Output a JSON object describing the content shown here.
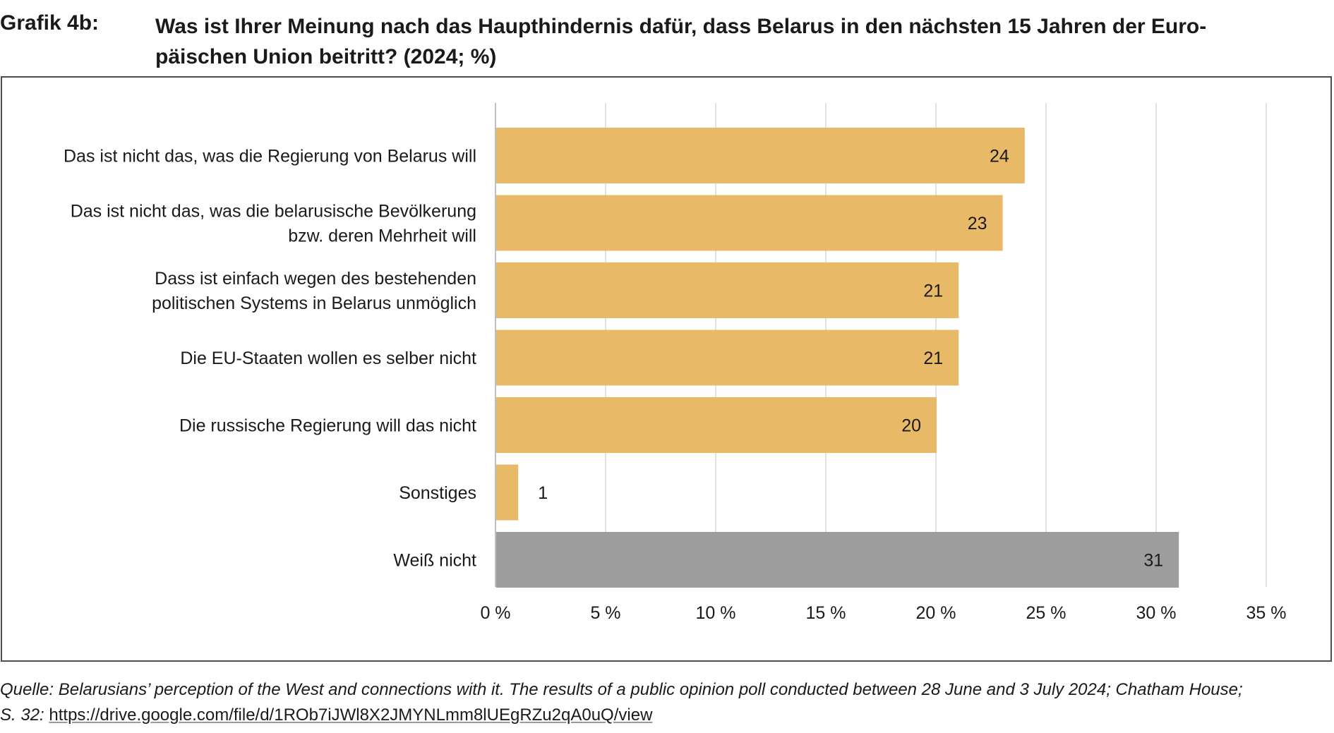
{
  "figure_label": "Grafik 4b:",
  "title_lines": [
    "Was ist Ihrer Meinung nach das Haupthindernis dafür, dass Belarus in den nächsten 15 Jahren der Euro-",
    "päischen Union beitritt? (2024; %)"
  ],
  "source": {
    "line1": "Quelle: Belarusians’ perception of the West and connections with it. The results of a public opinion poll conducted between 28 June and 3 July 2024; Chatham House;",
    "line2_prefix": "S. 32:",
    "link": "https://drive.google.com/file/d/1ROb7iJWl8X2JMYNLmm8lUEgRZu2qA0uQ/view"
  },
  "colors": {
    "bar": "#E8BA68",
    "bar_dont_know": "#9E9E9E",
    "grid": "#D9D9D9",
    "axis": "#BFBFBF"
  },
  "chart_data": {
    "type": "bar",
    "orientation": "horizontal",
    "title": "Was ist Ihrer Meinung nach das Haupthindernis dafür, dass Belarus in den nächsten 15 Jahren der Europäischen Union beitritt? (2024; %)",
    "xlabel": "",
    "ylabel": "",
    "xlim": [
      0,
      35
    ],
    "ticks": [
      0,
      5,
      10,
      15,
      20,
      25,
      30,
      35
    ],
    "tick_labels": [
      "0 %",
      "5 %",
      "10 %",
      "15 %",
      "20 %",
      "25 %",
      "30 %",
      "35 %"
    ],
    "grid": true,
    "categories": [
      [
        "Das ist nicht das, was die Regierung von Belarus will"
      ],
      [
        "Das ist nicht das, was die belarusische Bevölkerung",
        "bzw. deren Mehrheit will"
      ],
      [
        "Dass ist einfach wegen des bestehenden",
        "politischen Systems in Belarus unmöglich"
      ],
      [
        "Die EU-Staaten wollen es selber nicht"
      ],
      [
        "Die russische Regierung will das nicht"
      ],
      [
        "Sonstiges"
      ],
      [
        "Weiß nicht"
      ]
    ],
    "values": [
      24,
      23,
      21,
      21,
      20,
      1,
      31
    ],
    "value_labels": [
      "24",
      "23",
      "21",
      "21",
      "20",
      "1",
      "31"
    ],
    "bar_colors": [
      "#E8BA68",
      "#E8BA68",
      "#E8BA68",
      "#E8BA68",
      "#E8BA68",
      "#E8BA68",
      "#9E9E9E"
    ]
  }
}
